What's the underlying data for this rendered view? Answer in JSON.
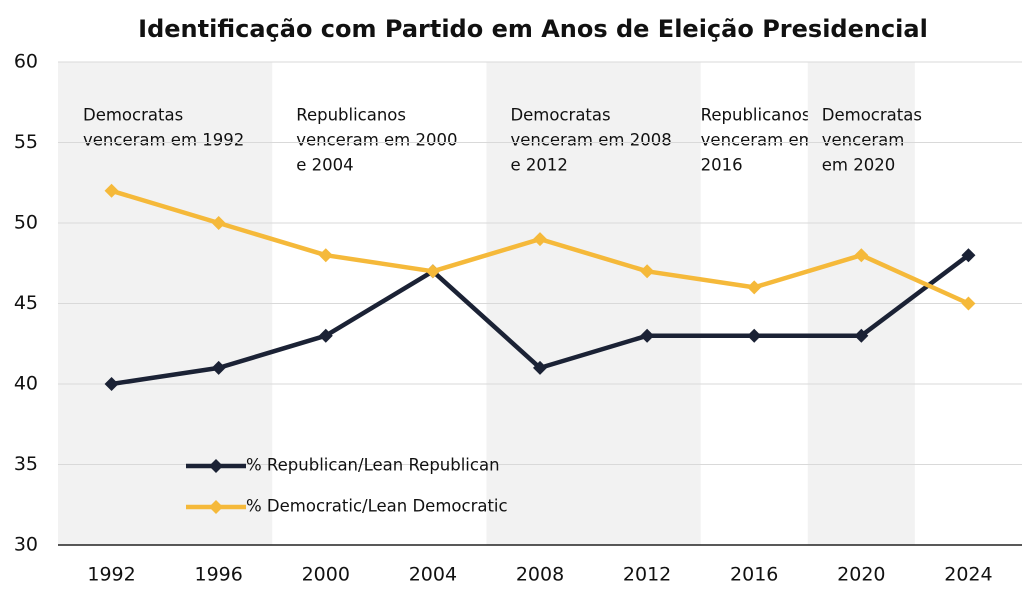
{
  "chart_data": {
    "type": "line",
    "title": "Identificação com Partido em Anos de Eleição Presidencial",
    "categories": [
      "1992",
      "1996",
      "2000",
      "2004",
      "2008",
      "2012",
      "2016",
      "2020",
      "2024"
    ],
    "series": [
      {
        "name": "% Republican/Lean Republican",
        "color": "#1b2235",
        "values": [
          40,
          41,
          43,
          47,
          41,
          43,
          43,
          43,
          48
        ]
      },
      {
        "name": "% Democratic/Lean Democratic",
        "color": "#f5b93a",
        "values": [
          52,
          50,
          48,
          47,
          49,
          47,
          46,
          48,
          45
        ]
      }
    ],
    "annotations": [
      {
        "lines": [
          "Democratas",
          "venceram em 1992"
        ],
        "start": "1992",
        "end": "1996",
        "shaded": true
      },
      {
        "lines": [
          "Republicanos",
          "venceram em 2000",
          "e 2004"
        ],
        "start": "2000",
        "end": "2004",
        "shaded": false
      },
      {
        "lines": [
          "Democratas",
          "venceram em 2008",
          "e 2012"
        ],
        "start": "2008",
        "end": "2012",
        "shaded": true
      },
      {
        "lines": [
          "Republicanos",
          "venceram em",
          "2016"
        ],
        "start": "2016",
        "end": "2016",
        "shaded": false
      },
      {
        "lines": [
          "Democratas",
          "venceram",
          "em 2020"
        ],
        "start": "2020",
        "end": "2020",
        "shaded": true
      }
    ],
    "ylim": [
      30,
      60
    ],
    "yticks": [
      30,
      35,
      40,
      45,
      50,
      55,
      60
    ],
    "grid": true,
    "legend": "lower left"
  }
}
